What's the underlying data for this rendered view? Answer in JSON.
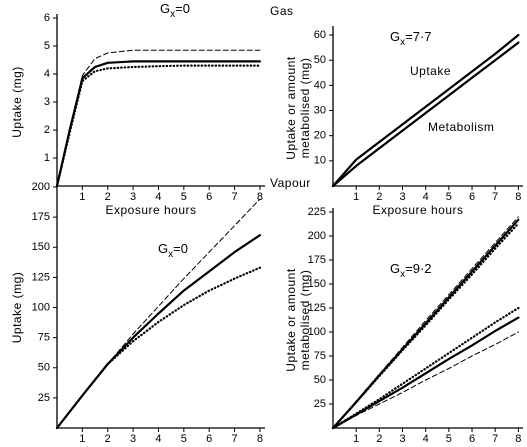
{
  "chart_data": [
    {
      "type": "line",
      "ylabel": [
        "Uptake (mg)"
      ],
      "xlabel": "Exposure hours",
      "annotation": {
        "symbol": "G",
        "subscript": "x",
        "value": "=0"
      },
      "x": [
        0,
        0.5,
        1,
        1.5,
        2,
        3,
        4,
        5,
        6,
        7,
        8
      ],
      "series": [
        {
          "style": "dashed",
          "color": "#000000",
          "values": [
            0,
            2,
            3.95,
            4.55,
            4.75,
            4.85,
            4.85,
            4.85,
            4.85,
            4.85,
            4.85
          ]
        },
        {
          "style": "solid",
          "color": "#000000",
          "values": [
            0,
            2,
            3.85,
            4.25,
            4.4,
            4.45,
            4.45,
            4.45,
            4.45,
            4.45,
            4.45
          ]
        },
        {
          "style": "dotted",
          "color": "#000000",
          "values": [
            0,
            1.9,
            3.75,
            4.1,
            4.2,
            4.25,
            4.28,
            4.3,
            4.3,
            4.3,
            4.3
          ]
        }
      ],
      "xlim": [
        0,
        8.2
      ],
      "xticks": [
        1,
        2,
        3,
        4,
        5,
        6,
        7,
        8
      ],
      "ylim": [
        0,
        6
      ],
      "yticks": [
        1,
        2,
        3,
        4,
        5,
        6
      ]
    },
    {
      "type": "line",
      "title": "Gas",
      "ylabel": [
        "Uptake or amount",
        "metabolised (mg)"
      ],
      "xlabel": "Exposure hours",
      "annotation": {
        "symbol": "G",
        "subscript": "x",
        "value": "=7·7"
      },
      "x": [
        0,
        1,
        2,
        3,
        4,
        5,
        6,
        7,
        8
      ],
      "series": [
        {
          "name": "Uptake",
          "style": "solid",
          "color": "#000000",
          "values": [
            0,
            10.5,
            17.5,
            24.5,
            31.5,
            38.5,
            45.5,
            52.5,
            60
          ]
        },
        {
          "name": "Metabolism",
          "style": "solid",
          "color": "#000000",
          "values": [
            0,
            8,
            15,
            22,
            29,
            36,
            43,
            50,
            57
          ]
        }
      ],
      "xlim": [
        0,
        8.2
      ],
      "xticks": [
        1,
        2,
        3,
        4,
        5,
        6,
        7,
        8
      ],
      "ylim": [
        0,
        62
      ],
      "yticks": [
        10,
        20,
        30,
        40,
        50,
        60
      ]
    },
    {
      "type": "line",
      "ylabel": [
        "Uptake (mg)"
      ],
      "xlabel": "Exposure hours",
      "annotation": {
        "symbol": "G",
        "subscript": "x",
        "value": "=0"
      },
      "x": [
        0,
        1,
        2,
        3,
        4,
        5,
        6,
        7,
        8
      ],
      "series": [
        {
          "style": "dashed",
          "color": "#000000",
          "values": [
            0,
            27,
            53,
            78,
            101,
            124,
            146,
            168,
            190
          ]
        },
        {
          "style": "solid",
          "color": "#000000",
          "values": [
            0,
            27,
            53,
            75,
            95,
            114,
            130,
            146,
            160
          ]
        },
        {
          "style": "dotted",
          "color": "#000000",
          "values": [
            0,
            27,
            53,
            72,
            88,
            102,
            114,
            124,
            133
          ]
        }
      ],
      "xlim": [
        0,
        8.2
      ],
      "xticks": [
        1,
        2,
        3,
        4,
        5,
        6,
        7,
        8
      ],
      "ylim": [
        0,
        200
      ],
      "yticks": [
        25,
        50,
        75,
        100,
        125,
        150,
        175,
        200
      ]
    },
    {
      "type": "line",
      "title": "Vapour",
      "ylabel": [
        "Uptake or amount",
        "metabolised (mg)"
      ],
      "xlabel": "Exposure hours",
      "annotation": {
        "symbol": "G",
        "subscript": "x",
        "value": "=9·2"
      },
      "x": [
        0,
        1,
        2,
        3,
        4,
        5,
        6,
        7,
        8
      ],
      "series": [
        {
          "style": "dashed",
          "color": "#000000",
          "values": [
            0,
            28,
            56,
            84,
            112,
            139,
            166,
            193,
            220
          ]
        },
        {
          "style": "solid",
          "color": "#000000",
          "values": [
            0,
            27,
            55,
            82,
            109,
            136,
            163,
            190,
            217
          ]
        },
        {
          "style": "dotted",
          "color": "#000000",
          "values": [
            0,
            27,
            54,
            81,
            107,
            134,
            160,
            187,
            213
          ]
        },
        {
          "style": "dotted",
          "color": "#000000",
          "values": [
            0,
            15,
            30,
            46,
            62,
            78,
            94,
            110,
            125
          ]
        },
        {
          "style": "solid",
          "color": "#000000",
          "values": [
            0,
            14,
            28,
            42,
            57,
            72,
            86,
            101,
            115
          ]
        },
        {
          "style": "dashed",
          "color": "#000000",
          "values": [
            0,
            13,
            25,
            37,
            50,
            62,
            75,
            87,
            100
          ]
        }
      ],
      "xlim": [
        0,
        8.2
      ],
      "xticks": [
        1,
        2,
        3,
        4,
        5,
        6,
        7,
        8
      ],
      "ylim": [
        0,
        225
      ],
      "yticks": [
        25,
        50,
        75,
        100,
        125,
        150,
        175,
        200,
        225
      ]
    }
  ]
}
